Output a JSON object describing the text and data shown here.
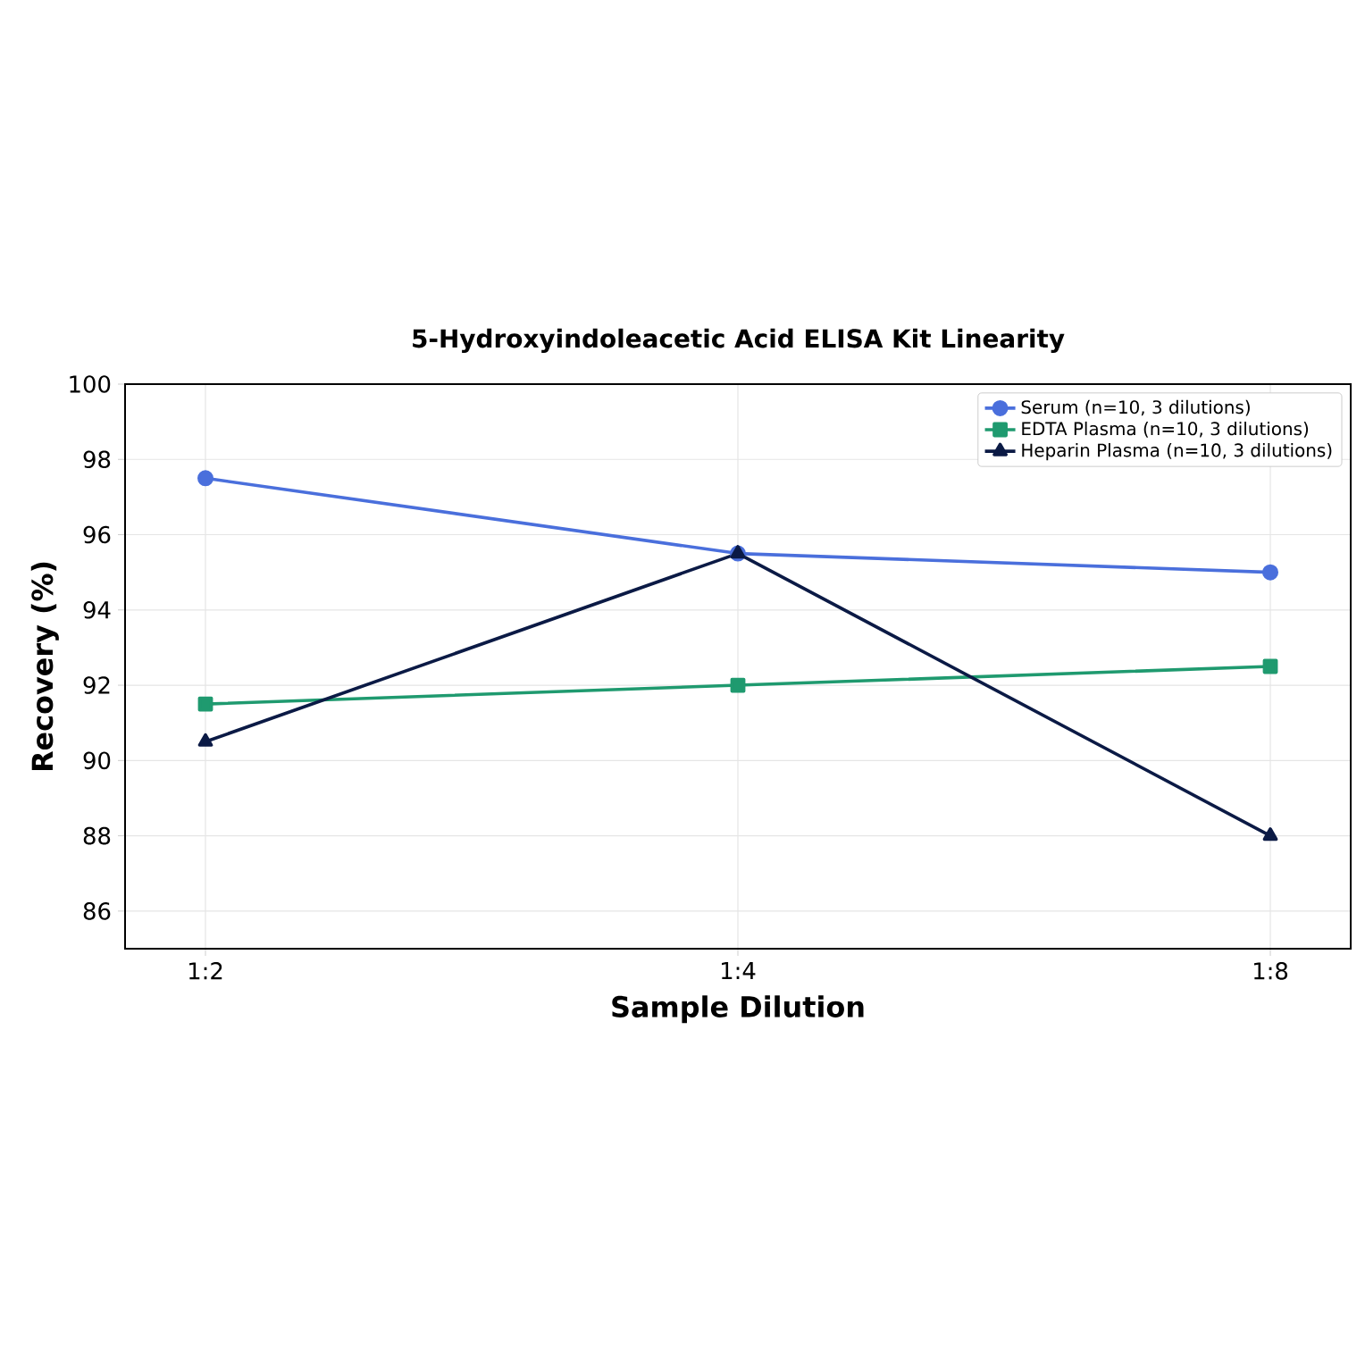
{
  "chart_data": {
    "type": "line",
    "title": "5-Hydroxyindoleacetic Acid ELISA Kit Linearity",
    "xlabel": "Sample Dilution",
    "ylabel": "Recovery (%)",
    "categories": [
      "1:2",
      "1:4",
      "1:8"
    ],
    "series": [
      {
        "name": "Serum (n=10, 3 dilutions)",
        "color": "#4a6fdc",
        "marker": "circle",
        "values": [
          97.5,
          95.5,
          95.0
        ]
      },
      {
        "name": "EDTA Plasma (n=10, 3 dilutions)",
        "color": "#1f9a6f",
        "marker": "square",
        "values": [
          91.5,
          92.0,
          92.5
        ]
      },
      {
        "name": "Heparin Plasma (n=10, 3 dilutions)",
        "color": "#0b1a45",
        "marker": "triangle",
        "values": [
          90.5,
          95.5,
          88.0
        ]
      }
    ],
    "ylim": [
      85,
      100
    ],
    "yticks": [
      86,
      88,
      90,
      92,
      94,
      96,
      98,
      100
    ],
    "grid": true,
    "legend": "top right"
  }
}
